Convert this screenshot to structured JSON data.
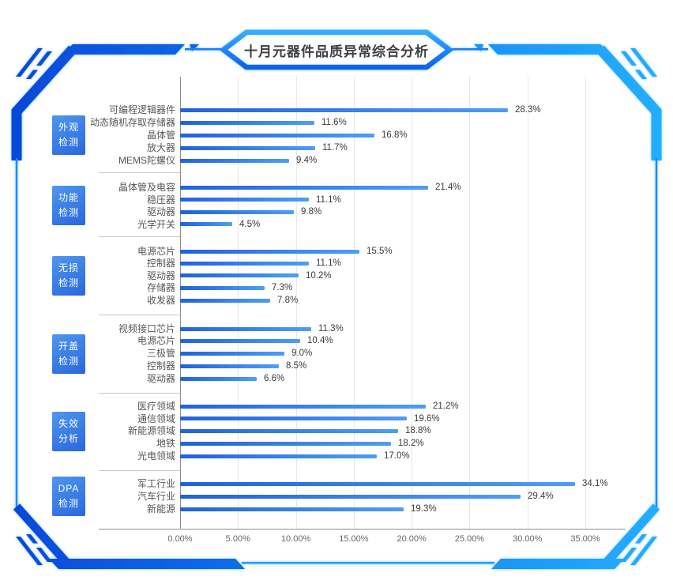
{
  "title": "十月元器件品质异常综合分析",
  "colors": {
    "frame_blue_dark": "#0646d8",
    "frame_blue_mid": "#0f7ef2",
    "frame_blue_light": "#25b0ff",
    "bar_gradient_start": "#2063db",
    "bar_gradient_end": "#4e9df5",
    "badge_gradient_start": "#4f97ee",
    "badge_gradient_end": "#2a66dd",
    "title_text": "#3b4045",
    "category_text": "#565656",
    "value_text": "#3a3a3a",
    "grid_line": "#e7e7e7",
    "axis_line": "#8f8f8f",
    "group_separator": "#c8c8c8"
  },
  "chart_data": {
    "type": "bar",
    "orientation": "horizontal",
    "title": "十月元器件品质异常综合分析",
    "unit": "%",
    "xlim": [
      0,
      35
    ],
    "x_ticks": [
      "0.00%",
      "5.00%",
      "10.00%",
      "15.00%",
      "20.00%",
      "25.00%",
      "30.00%",
      "35.00%"
    ],
    "grid": "vertical-lines",
    "groups": [
      {
        "name": "外观检测",
        "badge_lines": [
          "外观",
          "检测"
        ],
        "items": [
          {
            "label": "可编程逻辑器件",
            "value": 28.3,
            "value_label": "28.3%"
          },
          {
            "label": "动态随机存取存储器",
            "value": 11.6,
            "value_label": "11.6%"
          },
          {
            "label": "晶体管",
            "value": 16.8,
            "value_label": "16.8%"
          },
          {
            "label": "放大器",
            "value": 11.7,
            "value_label": "11.7%"
          },
          {
            "label": "MEMS陀螺仪",
            "value": 9.4,
            "value_label": "9.4%"
          }
        ]
      },
      {
        "name": "功能检测",
        "badge_lines": [
          "功能",
          "检测"
        ],
        "items": [
          {
            "label": "晶体管及电容",
            "value": 21.4,
            "value_label": "21.4%"
          },
          {
            "label": "稳压器",
            "value": 11.1,
            "value_label": "11.1%"
          },
          {
            "label": "驱动器",
            "value": 9.8,
            "value_label": "9.8%"
          },
          {
            "label": "光学开关",
            "value": 4.5,
            "value_label": "4.5%"
          }
        ]
      },
      {
        "name": "无损检测",
        "badge_lines": [
          "无损",
          "检测"
        ],
        "items": [
          {
            "label": "电源芯片",
            "value": 15.5,
            "value_label": "15.5%"
          },
          {
            "label": "控制器",
            "value": 11.1,
            "value_label": "11.1%"
          },
          {
            "label": "驱动器",
            "value": 10.2,
            "value_label": "10.2%"
          },
          {
            "label": "存储器",
            "value": 7.3,
            "value_label": "7.3%"
          },
          {
            "label": "收发器",
            "value": 7.8,
            "value_label": "7.8%"
          }
        ]
      },
      {
        "name": "开盖检测",
        "badge_lines": [
          "开盖",
          "检测"
        ],
        "items": [
          {
            "label": "视频接口芯片",
            "value": 11.3,
            "value_label": "11.3%"
          },
          {
            "label": "电源芯片",
            "value": 10.4,
            "value_label": "10.4%"
          },
          {
            "label": "三极管",
            "value": 9.0,
            "value_label": "9.0%"
          },
          {
            "label": "控制器",
            "value": 8.5,
            "value_label": "8.5%"
          },
          {
            "label": "驱动器",
            "value": 6.6,
            "value_label": "6.6%"
          }
        ]
      },
      {
        "name": "失效分析",
        "badge_lines": [
          "失效",
          "分析"
        ],
        "items": [
          {
            "label": "医疗领域",
            "value": 21.2,
            "value_label": "21.2%"
          },
          {
            "label": "通信领域",
            "value": 19.6,
            "value_label": "19.6%"
          },
          {
            "label": "新能源领域",
            "value": 18.8,
            "value_label": "18.8%"
          },
          {
            "label": "地铁",
            "value": 18.2,
            "value_label": "18.2%"
          },
          {
            "label": "光电领域",
            "value": 17.0,
            "value_label": "17.0%"
          }
        ]
      },
      {
        "name": "DPA检测",
        "badge_lines": [
          "DPA",
          "检测"
        ],
        "items": [
          {
            "label": "军工行业",
            "value": 34.1,
            "value_label": "34.1%"
          },
          {
            "label": "汽车行业",
            "value": 29.4,
            "value_label": "29.4%"
          },
          {
            "label": "新能源",
            "value": 19.3,
            "value_label": "19.3%"
          }
        ]
      }
    ]
  }
}
